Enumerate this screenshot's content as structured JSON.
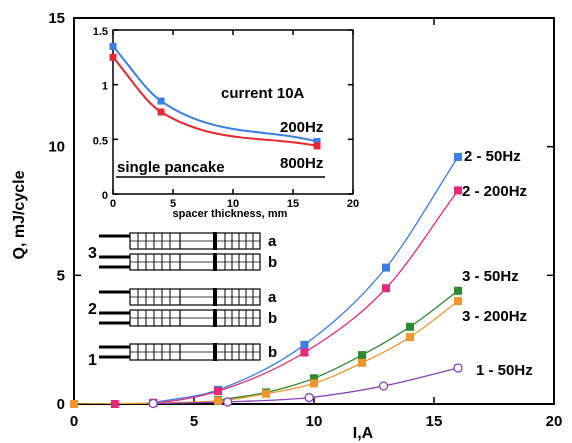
{
  "chart_data": [
    {
      "type": "line",
      "xlabel": "I,A",
      "ylabel": "Q, mJ/cycle",
      "xlim": [
        0,
        20
      ],
      "ylim": [
        0,
        15
      ],
      "xticks": [
        "0",
        "5",
        "10",
        "15",
        "20"
      ],
      "yticks": [
        "0",
        "5",
        "10",
        "15"
      ],
      "series": [
        {
          "name": "2 - 50Hz",
          "color": "#3a7ee8",
          "marker": "square-filled",
          "x": [
            3.3,
            6,
            9.6,
            13,
            16
          ],
          "y": [
            0.05,
            0.55,
            2.3,
            5.3,
            9.6
          ]
        },
        {
          "name": "2 - 200Hz",
          "color": "#e8287a",
          "marker": "square-filled",
          "x": [
            0,
            1.7,
            3.3,
            6,
            9.6,
            13,
            16
          ],
          "y": [
            0,
            0,
            0.04,
            0.5,
            2.0,
            4.5,
            8.3
          ]
        },
        {
          "name": "3 - 50Hz",
          "color": "#2d8a2d",
          "marker": "square-filled",
          "x": [
            6,
            8,
            10,
            12,
            14,
            16
          ],
          "y": [
            0.15,
            0.45,
            1.0,
            1.9,
            3.0,
            4.4
          ]
        },
        {
          "name": "3 - 200Hz",
          "color": "#f0962d",
          "marker": "square-filled",
          "x": [
            0,
            6,
            8,
            10,
            12,
            14,
            16
          ],
          "y": [
            0,
            0.12,
            0.4,
            0.8,
            1.6,
            2.6,
            4.0
          ]
        },
        {
          "name": "1 - 50Hz",
          "color": "#8a3fbf",
          "marker": "circle-open",
          "x": [
            3.3,
            6.4,
            9.8,
            12.9,
            16
          ],
          "y": [
            0.02,
            0.08,
            0.25,
            0.7,
            1.4
          ]
        }
      ]
    },
    {
      "type": "line",
      "xlabel": "spacer thickness, mm",
      "ylabel": "",
      "xlim": [
        0,
        20
      ],
      "ylim": [
        0,
        1.5
      ],
      "xticks": [
        "0",
        "5",
        "10",
        "15",
        "20"
      ],
      "yticks": [
        "0",
        "0.5",
        "1",
        "1.5"
      ],
      "annotations": [
        "current 10A",
        "200Hz",
        "800Hz",
        "single pancake"
      ],
      "series": [
        {
          "name": "200Hz",
          "color": "#3a7ee8",
          "x": [
            0,
            4,
            17
          ],
          "y": [
            1.35,
            0.85,
            0.48
          ]
        },
        {
          "name": "800Hz",
          "color": "#e8282e",
          "x": [
            0,
            4,
            17
          ],
          "y": [
            1.25,
            0.75,
            0.44
          ]
        }
      ]
    }
  ],
  "diagram": {
    "rows": [
      {
        "number": "3",
        "layers": [
          "a",
          "b"
        ]
      },
      {
        "number": "2",
        "layers": [
          "a",
          "b"
        ]
      },
      {
        "number": "1",
        "layers": [
          "b"
        ]
      }
    ]
  }
}
